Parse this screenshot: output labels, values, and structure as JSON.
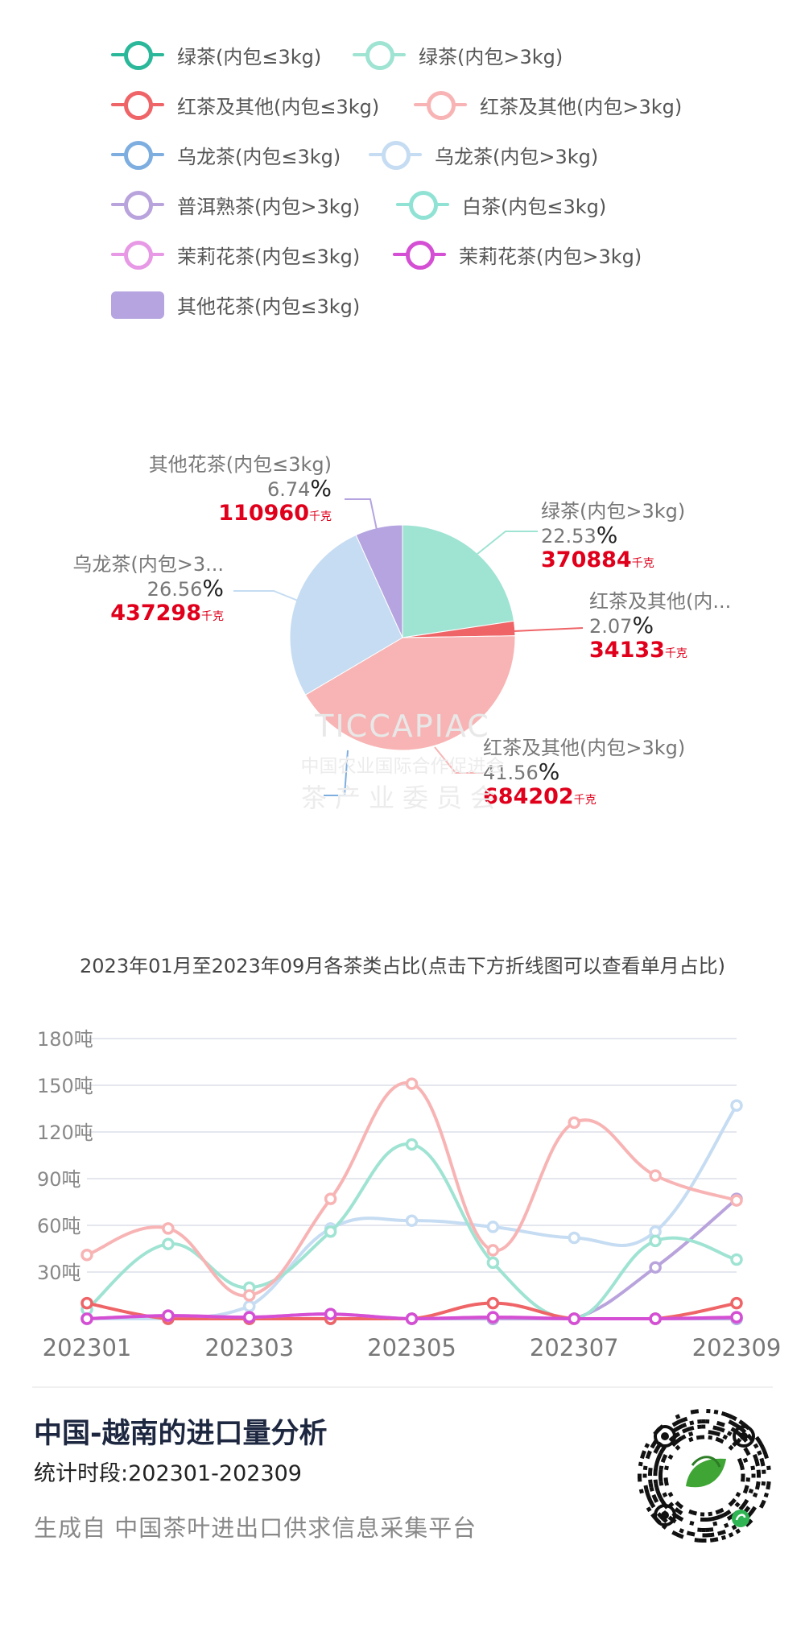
{
  "legend": [
    {
      "label": "绿茶(内包≤3kg)",
      "color": "#2bb89a",
      "marker": "line"
    },
    {
      "label": "绿茶(内包>3kg)",
      "color": "#9fe3d3",
      "marker": "line"
    },
    {
      "label": "红茶及其他(内包≤3kg)",
      "color": "#ef6467",
      "marker": "line"
    },
    {
      "label": "红茶及其他(内包>3kg)",
      "color": "#f8b4b4",
      "marker": "line"
    },
    {
      "label": "乌龙茶(内包≤3kg)",
      "color": "#7eaee0",
      "marker": "line"
    },
    {
      "label": "乌龙茶(内包>3kg)",
      "color": "#c5dcf2",
      "marker": "line"
    },
    {
      "label": "普洱熟茶(内包>3kg)",
      "color": "#b9a3dc",
      "marker": "line"
    },
    {
      "label": "白茶(内包≤3kg)",
      "color": "#8fe2d4",
      "marker": "line"
    },
    {
      "label": "茉莉花茶(内包≤3kg)",
      "color": "#e799e6",
      "marker": "line"
    },
    {
      "label": "茉莉花茶(内包>3kg)",
      "color": "#d44fd3",
      "marker": "line"
    },
    {
      "label": "其他花茶(内包≤3kg)",
      "color": "#b5a4e0",
      "marker": "rect"
    }
  ],
  "pie_units": {
    "pct_sign": "%",
    "kg_unit": "千克"
  },
  "chart_data": [
    {
      "type": "pie",
      "slices": [
        {
          "name": "绿茶(内包≤3kg)",
          "value": 0.2,
          "color": "#2bb89a",
          "display_name": "",
          "pct": "",
          "kg": ""
        },
        {
          "name": "绿茶(内包>3kg)",
          "value": 370884,
          "color": "#9fe3d3",
          "display_name": "绿茶(内包>3kg)",
          "pct": "22.53",
          "kg": "370884"
        },
        {
          "name": "红茶及其他(内包≤3kg)",
          "value": 34133,
          "color": "#ef6467",
          "display_name": "红茶及其他(内...",
          "pct": "2.07",
          "kg": "34133"
        },
        {
          "name": "红茶及其他(内包>3kg)",
          "value": 684202,
          "color": "#f8b4b4",
          "display_name": "红茶及其他(内包>3kg)",
          "pct": "41.56",
          "kg": "684202"
        },
        {
          "name": "乌龙茶(内包≤3kg)",
          "value": 0.3,
          "color": "#7eaee0",
          "display_name": "",
          "pct": "",
          "kg": ""
        },
        {
          "name": "乌龙茶(内包>3kg)",
          "value": 437298,
          "color": "#c5dcf2",
          "display_name": "乌龙茶(内包>3...",
          "pct": "26.56",
          "kg": "437298"
        },
        {
          "name": "其他花茶(内包≤3kg)",
          "value": 110960,
          "color": "#b5a4e0",
          "display_name": "其他花茶(内包≤3kg)",
          "pct": "6.74",
          "kg": "110960"
        }
      ]
    },
    {
      "type": "line",
      "title": "2023年01月至2023年09月各茶类占比(点击下方折线图可以查看单月占比)",
      "x": [
        "202301",
        "202302",
        "202303",
        "202304",
        "202305",
        "202306",
        "202307",
        "202308",
        "202309"
      ],
      "x_tick_labels": [
        "202301",
        "202303",
        "202305",
        "202307",
        "202309"
      ],
      "y_ticks": [
        "30吨",
        "60吨",
        "90吨",
        "120吨",
        "150吨",
        "180吨"
      ],
      "ylim": [
        0,
        180
      ],
      "grid": true,
      "series": [
        {
          "name": "绿茶(内包≤3kg)",
          "color": "#2bb89a",
          "values": [
            0,
            0,
            0,
            0,
            0,
            0,
            0,
            0,
            0
          ]
        },
        {
          "name": "绿茶(内包>3kg)",
          "color": "#9fe3d3",
          "values": [
            6,
            48,
            20,
            56,
            112,
            36,
            0,
            50,
            38
          ]
        },
        {
          "name": "红茶及其他(内包≤3kg)",
          "color": "#ef6467",
          "values": [
            10,
            0,
            0,
            0,
            0,
            10,
            0,
            0,
            10
          ]
        },
        {
          "name": "红茶及其他(内包>3kg)",
          "color": "#f8b4b4",
          "values": [
            41,
            58,
            15,
            77,
            151,
            44,
            126,
            92,
            76
          ]
        },
        {
          "name": "乌龙茶(内包≤3kg)",
          "color": "#7eaee0",
          "values": [
            0,
            0,
            0,
            0,
            0,
            0,
            0,
            0,
            0
          ]
        },
        {
          "name": "乌龙茶(内包>3kg)",
          "color": "#c5dcf2",
          "values": [
            0,
            0,
            8,
            58,
            63,
            59,
            52,
            56,
            137
          ]
        },
        {
          "name": "普洱熟茶(内包>3kg)",
          "color": "#b9a3dc",
          "values": [
            0,
            0,
            0,
            0,
            0,
            0,
            0,
            33,
            77
          ]
        },
        {
          "name": "白茶(内包≤3kg)",
          "color": "#8fe2d4",
          "values": [
            0,
            0,
            0,
            0,
            0,
            0,
            0,
            0,
            0
          ]
        },
        {
          "name": "茉莉花茶(内包≤3kg)",
          "color": "#e799e6",
          "values": [
            0,
            2,
            1,
            3,
            0,
            1,
            0,
            0,
            1
          ]
        },
        {
          "name": "茉莉花茶(内包>3kg)",
          "color": "#d44fd3",
          "values": [
            0,
            2,
            1,
            3,
            0,
            1,
            0,
            0,
            1
          ]
        },
        {
          "name": "其他花茶(内包≤3kg)",
          "color": "#b5a4e0",
          "values": [
            0,
            0,
            0,
            0,
            0,
            0,
            0,
            0,
            0
          ]
        }
      ]
    }
  ],
  "watermark": {
    "logo": "TICCAPIAC",
    "line1": "中国农业国际合作促进会",
    "line2": "茶产业委员会"
  },
  "footer": {
    "title": "中国-越南的进口量分析",
    "period": "统计时段:202301-202309",
    "source": "生成自  中国茶叶进出口供求信息采集平台"
  }
}
